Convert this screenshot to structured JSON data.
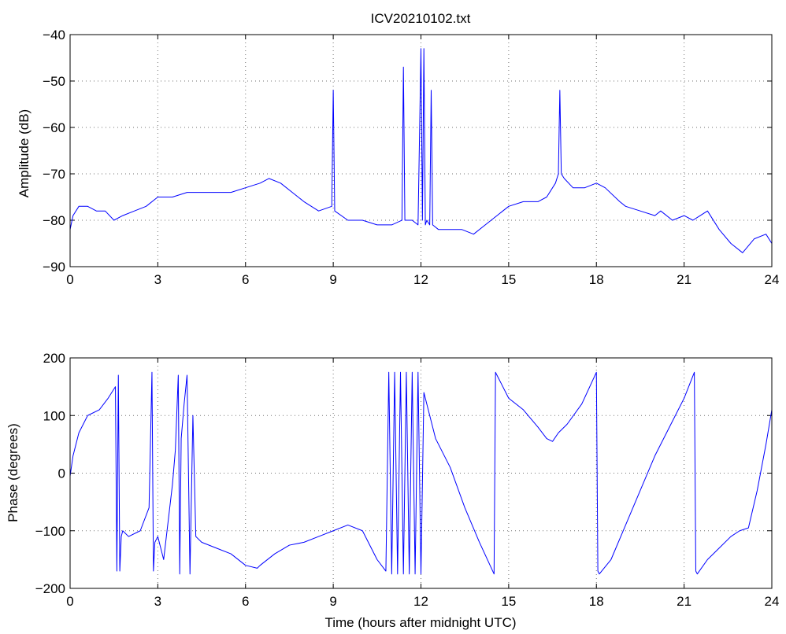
{
  "chart_data": [
    {
      "type": "line",
      "title": "ICV20210102.txt",
      "xlabel": "",
      "ylabel": "Amplitude (dB)",
      "xlim": [
        0,
        24
      ],
      "ylim": [
        -90,
        -40
      ],
      "xticks": [
        "0",
        "3",
        "6",
        "9",
        "12",
        "15",
        "18",
        "21",
        "24"
      ],
      "yticks": [
        "−40",
        "−50",
        "−60",
        "−70",
        "−80",
        "−90"
      ],
      "grid": true,
      "line_color": "#0000ff",
      "series": [
        {
          "x": [
            0,
            0.1,
            0.3,
            0.6,
            0.9,
            1.2,
            1.5,
            1.8,
            2.2,
            2.6,
            3.0,
            3.5,
            4.0,
            4.5,
            5.0,
            5.5,
            6.0,
            6.5,
            6.8,
            7.2,
            7.6,
            8.0,
            8.5,
            8.95,
            9.0,
            9.05,
            9.5,
            10.0,
            10.5,
            11.0,
            11.35,
            11.4,
            11.45,
            11.7,
            11.9,
            12.0,
            12.05,
            12.1,
            12.15,
            12.2,
            12.3,
            12.35,
            12.4,
            12.6,
            13.0,
            13.4,
            13.8,
            14.2,
            14.6,
            15.0,
            15.5,
            16.0,
            16.3,
            16.6,
            16.7,
            16.75,
            16.8,
            16.9,
            17.2,
            17.6,
            18.0,
            18.3,
            18.8,
            19.0,
            19.5,
            20.0,
            20.2,
            20.6,
            21.0,
            21.3,
            21.8,
            22.2,
            22.6,
            23.0,
            23.4,
            23.8,
            24.0
          ],
          "y": [
            -82,
            -79,
            -77,
            -77,
            -78,
            -78,
            -80,
            -79,
            -78,
            -77,
            -75,
            -75,
            -74,
            -74,
            -74,
            -74,
            -73,
            -72,
            -71,
            -72,
            -74,
            -76,
            -78,
            -77,
            -52,
            -78,
            -80,
            -80,
            -81,
            -81,
            -80,
            -47,
            -80,
            -80,
            -81,
            -43,
            -80,
            -43,
            -81,
            -80,
            -81,
            -52,
            -81,
            -82,
            -82,
            -82,
            -83,
            -81,
            -79,
            -77,
            -76,
            -76,
            -75,
            -72,
            -70,
            -52,
            -70,
            -71,
            -73,
            -73,
            -72,
            -73,
            -76,
            -77,
            -78,
            -79,
            -78,
            -80,
            -79,
            -80,
            -78,
            -82,
            -85,
            -87,
            -84,
            -83,
            -85
          ]
        }
      ]
    },
    {
      "type": "line",
      "title": "",
      "xlabel": "Time (hours after midnight UTC)",
      "ylabel": "Phase (degrees)",
      "xlim": [
        0,
        24
      ],
      "ylim": [
        -200,
        200
      ],
      "xticks": [
        "0",
        "3",
        "6",
        "9",
        "12",
        "15",
        "18",
        "21",
        "24"
      ],
      "yticks": [
        "200",
        "100",
        "0",
        "−100",
        "−200"
      ],
      "grid": true,
      "line_color": "#0000ff",
      "series": [
        {
          "x": [
            0,
            0.1,
            0.3,
            0.6,
            1.0,
            1.3,
            1.55,
            1.6,
            1.65,
            1.7,
            1.75,
            1.8,
            2.0,
            2.4,
            2.7,
            2.8,
            2.85,
            2.9,
            3.0,
            3.2,
            3.5,
            3.6,
            3.7,
            3.75,
            3.8,
            3.9,
            4.0,
            4.1,
            4.2,
            4.3,
            4.5,
            5.0,
            5.5,
            6.0,
            6.4,
            6.5,
            7.0,
            7.5,
            8.0,
            8.5,
            9.0,
            9.5,
            10.0,
            10.5,
            10.8,
            10.9,
            11.0,
            11.1,
            11.2,
            11.3,
            11.4,
            11.5,
            11.6,
            11.7,
            11.8,
            11.9,
            12.0,
            12.1,
            12.2,
            12.5,
            13.0,
            13.5,
            14.0,
            14.5,
            14.55,
            14.6,
            15.0,
            15.5,
            16.0,
            16.3,
            16.5,
            16.7,
            17.0,
            17.5,
            18.0,
            18.05,
            18.1,
            18.5,
            19.0,
            19.5,
            20.0,
            20.5,
            21.0,
            21.35,
            21.4,
            21.45,
            21.8,
            22.2,
            22.6,
            22.9,
            23.2,
            23.5,
            23.8,
            24.0
          ],
          "y": [
            -5,
            30,
            70,
            100,
            110,
            130,
            150,
            -170,
            170,
            -170,
            -110,
            -100,
            -110,
            -100,
            -60,
            175,
            -170,
            -120,
            -110,
            -150,
            -20,
            40,
            170,
            -175,
            60,
            120,
            170,
            -175,
            100,
            -110,
            -120,
            -130,
            -140,
            -160,
            -165,
            -160,
            -140,
            -125,
            -120,
            -110,
            -100,
            -90,
            -100,
            -150,
            -170,
            175,
            -175,
            175,
            -175,
            175,
            -175,
            175,
            -175,
            175,
            -175,
            175,
            -175,
            140,
            120,
            60,
            10,
            -60,
            -120,
            -175,
            175,
            170,
            130,
            110,
            80,
            60,
            55,
            70,
            85,
            120,
            175,
            -170,
            -175,
            -150,
            -90,
            -30,
            30,
            80,
            130,
            175,
            -170,
            -175,
            -150,
            -130,
            -110,
            -100,
            -95,
            -30,
            50,
            110
          ]
        }
      ]
    }
  ]
}
